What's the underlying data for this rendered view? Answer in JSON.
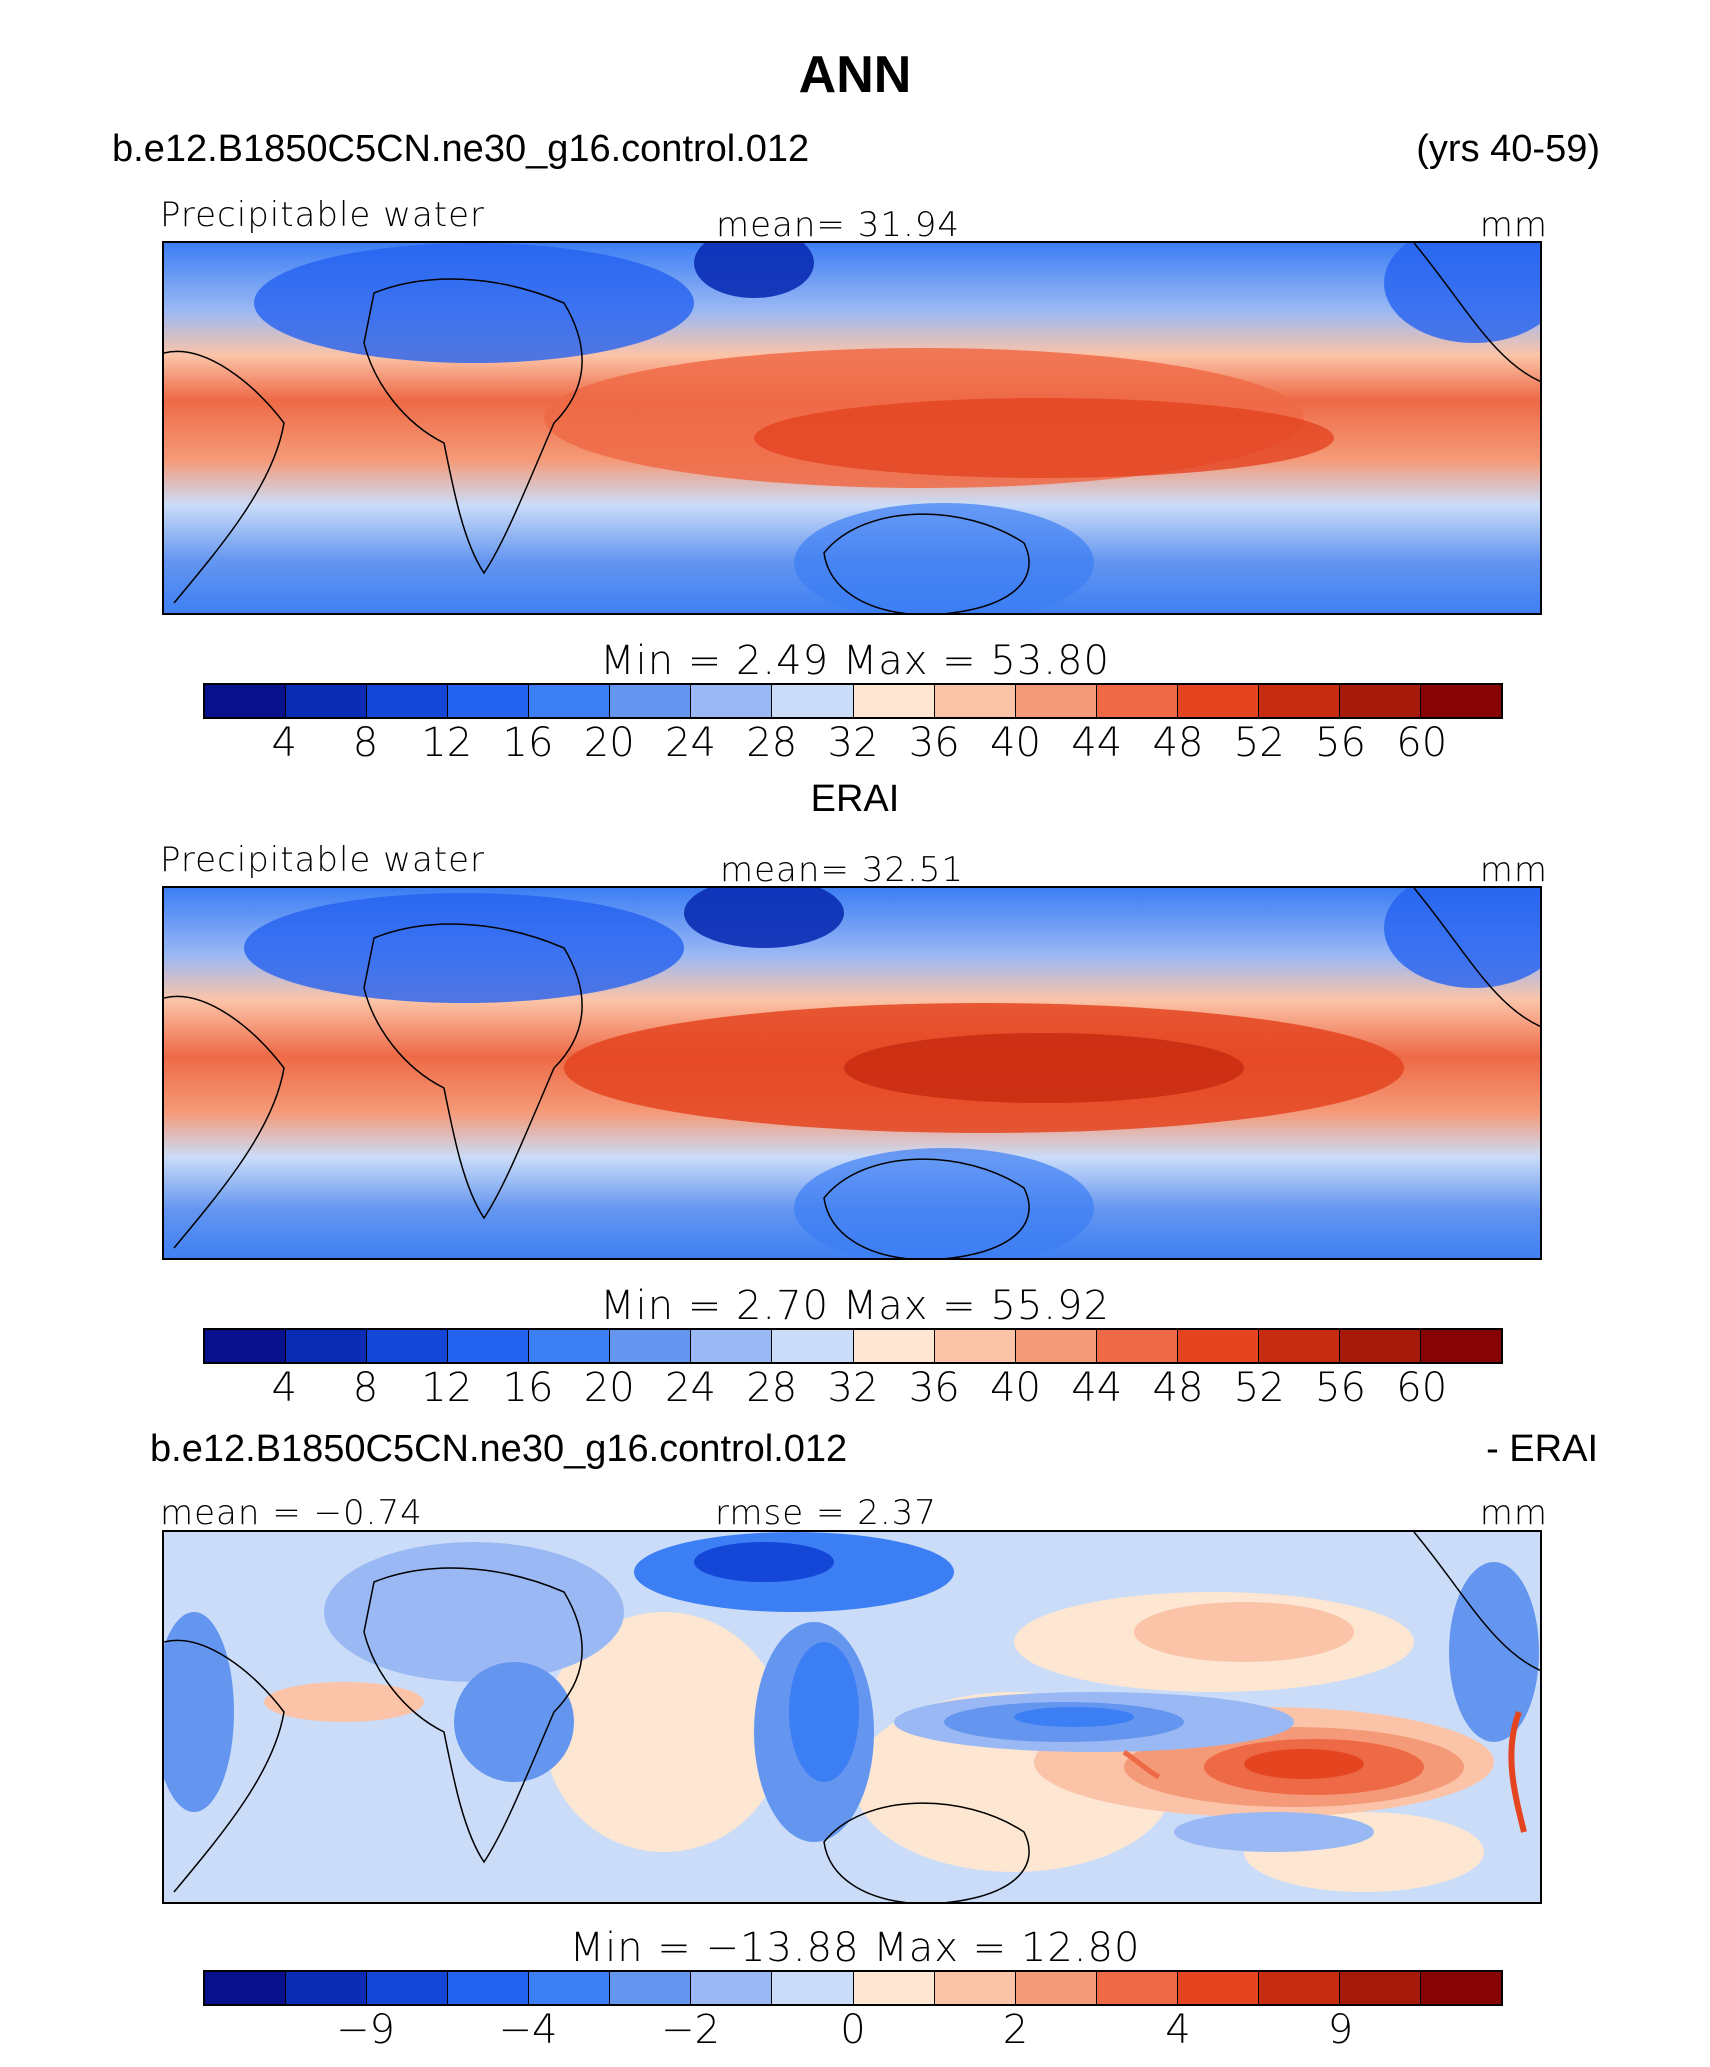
{
  "figure": {
    "title": "ANN",
    "case_name": "b.e12.B1850C5CN.ne30_g16.control.012",
    "years": "(yrs 40-59)"
  },
  "panel1": {
    "variable": "Precipitable water",
    "mean_label": "mean=   31.94",
    "units": "mm",
    "minmax": "Min  =     2.49  Max  =   53.80"
  },
  "panel2": {
    "title": "ERAI",
    "variable": "Precipitable water",
    "mean_label": "mean=   32.51",
    "units": "mm",
    "minmax": "Min  =     2.70  Max  =   55.92"
  },
  "panel3": {
    "case_name": "b.e12.B1850C5CN.ne30_g16.control.012",
    "suffix": "- ERAI",
    "mean_label": "mean  =   −0.74",
    "rmse_label": "rmse  =      2.37",
    "units": "mm",
    "minmax": "Min  = −13.88  Max  =   12.80"
  },
  "colorbar_fields": {
    "colors": [
      "#08108c",
      "#0a2cb4",
      "#1446d8",
      "#2462f0",
      "#3c7ef4",
      "#6496f0",
      "#9ab8f4",
      "#cadcf8",
      "#fde6d2",
      "#fbc4a8",
      "#f59a78",
      "#ee6a46",
      "#e44420",
      "#c82c10",
      "#a61a0c",
      "#860404"
    ],
    "ticks": [
      "4",
      "8",
      "12",
      "16",
      "20",
      "24",
      "28",
      "32",
      "36",
      "40",
      "44",
      "48",
      "52",
      "56",
      "60"
    ]
  },
  "colorbar_diff": {
    "colors": [
      "#08108c",
      "#0a2cb4",
      "#1446d8",
      "#2462f0",
      "#3c7ef4",
      "#6496f0",
      "#9ab8f4",
      "#cadcf8",
      "#fde6d2",
      "#fbc4a8",
      "#f59a78",
      "#ee6a46",
      "#e44420",
      "#c82c10",
      "#a61a0c",
      "#860404"
    ],
    "ticks": [
      "−9",
      "−4",
      "−2",
      "0",
      "2",
      "4",
      "9"
    ]
  }
}
